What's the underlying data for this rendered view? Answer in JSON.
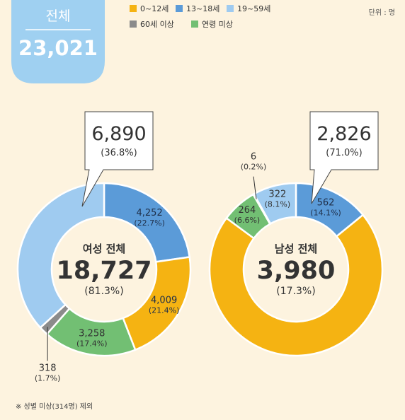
{
  "total_badge": {
    "label": "전체",
    "value": "23,021",
    "color": "#9fd0f1"
  },
  "unit": "단위 : 명",
  "legend": [
    {
      "label": "0~12세",
      "color": "#f5b312"
    },
    {
      "label": "13~18세",
      "color": "#5b9bd8"
    },
    {
      "label": "19~59세",
      "color": "#9fcbf0"
    },
    {
      "label": "60세 이상",
      "color": "#8b8b8b"
    },
    {
      "label": "연령 미상",
      "color": "#72bf73"
    }
  ],
  "footnote": "※ 성별 미상(314명) 제외",
  "chart_data": [
    {
      "type": "pie",
      "donut": true,
      "title": "여성 전체",
      "total": "18,727",
      "total_pct": "(81.3%)",
      "categories": [
        "0~12세",
        "13~18세",
        "19~59세",
        "60세 이상",
        "연령 미상"
      ],
      "values": [
        4009,
        4252,
        6890,
        318,
        3258
      ],
      "value_labels": [
        "4,009",
        "4,252",
        "6,890",
        "318",
        "3,258"
      ],
      "pct_labels": [
        "(21.4%)",
        "(22.7%)",
        "(36.8%)",
        "(1.7%)",
        "(17.4%)"
      ]
    },
    {
      "type": "pie",
      "donut": true,
      "title": "남성 전체",
      "total": "3,980",
      "total_pct": "(17.3%)",
      "categories": [
        "0~12세",
        "13~18세",
        "19~59세",
        "60세 이상",
        "연령 미상"
      ],
      "values": [
        2826,
        562,
        322,
        6,
        264
      ],
      "value_labels": [
        "2,826",
        "562",
        "322",
        "6",
        "264"
      ],
      "pct_labels": [
        "(71.0%)",
        "(14.1%)",
        "(8.1%)",
        "(0.2%)",
        "(6.6%)"
      ]
    }
  ]
}
